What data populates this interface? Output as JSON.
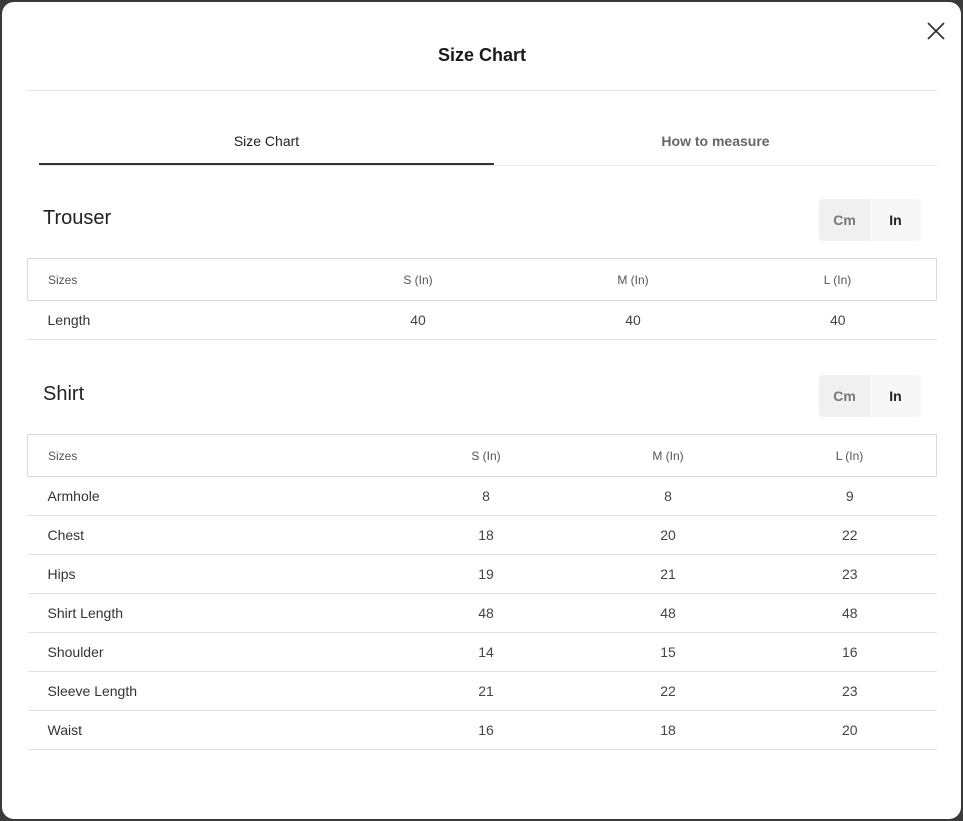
{
  "modal": {
    "title": "Size Chart"
  },
  "tabs": [
    {
      "label": "Size Chart",
      "active": true
    },
    {
      "label": "How to measure",
      "active": false
    }
  ],
  "trouser": {
    "title": "Trouser",
    "units": {
      "cm": "Cm",
      "in": "In",
      "selected": "In"
    },
    "headers": [
      "Sizes",
      "S (In)",
      "M (In)",
      "L (In)"
    ],
    "rows": [
      {
        "label": "Length",
        "values": [
          "40",
          "40",
          "40"
        ]
      }
    ]
  },
  "shirt": {
    "title": "Shirt",
    "units": {
      "cm": "Cm",
      "in": "In",
      "selected": "In"
    },
    "headers": [
      "Sizes",
      "S (In)",
      "M (In)",
      "L (In)"
    ],
    "rows": [
      {
        "label": "Armhole",
        "values": [
          "8",
          "8",
          "9"
        ]
      },
      {
        "label": "Chest",
        "values": [
          "18",
          "20",
          "22"
        ]
      },
      {
        "label": "Hips",
        "values": [
          "19",
          "21",
          "23"
        ]
      },
      {
        "label": "Shirt Length",
        "values": [
          "48",
          "48",
          "48"
        ]
      },
      {
        "label": "Shoulder",
        "values": [
          "14",
          "15",
          "16"
        ]
      },
      {
        "label": "Sleeve Length",
        "values": [
          "21",
          "22",
          "23"
        ]
      },
      {
        "label": "Waist",
        "values": [
          "16",
          "18",
          "20"
        ]
      }
    ]
  },
  "icons": {
    "close": "close-icon"
  },
  "colors": {
    "background": "#ffffff",
    "text": "#222222",
    "active_tab_border": "#333333"
  }
}
